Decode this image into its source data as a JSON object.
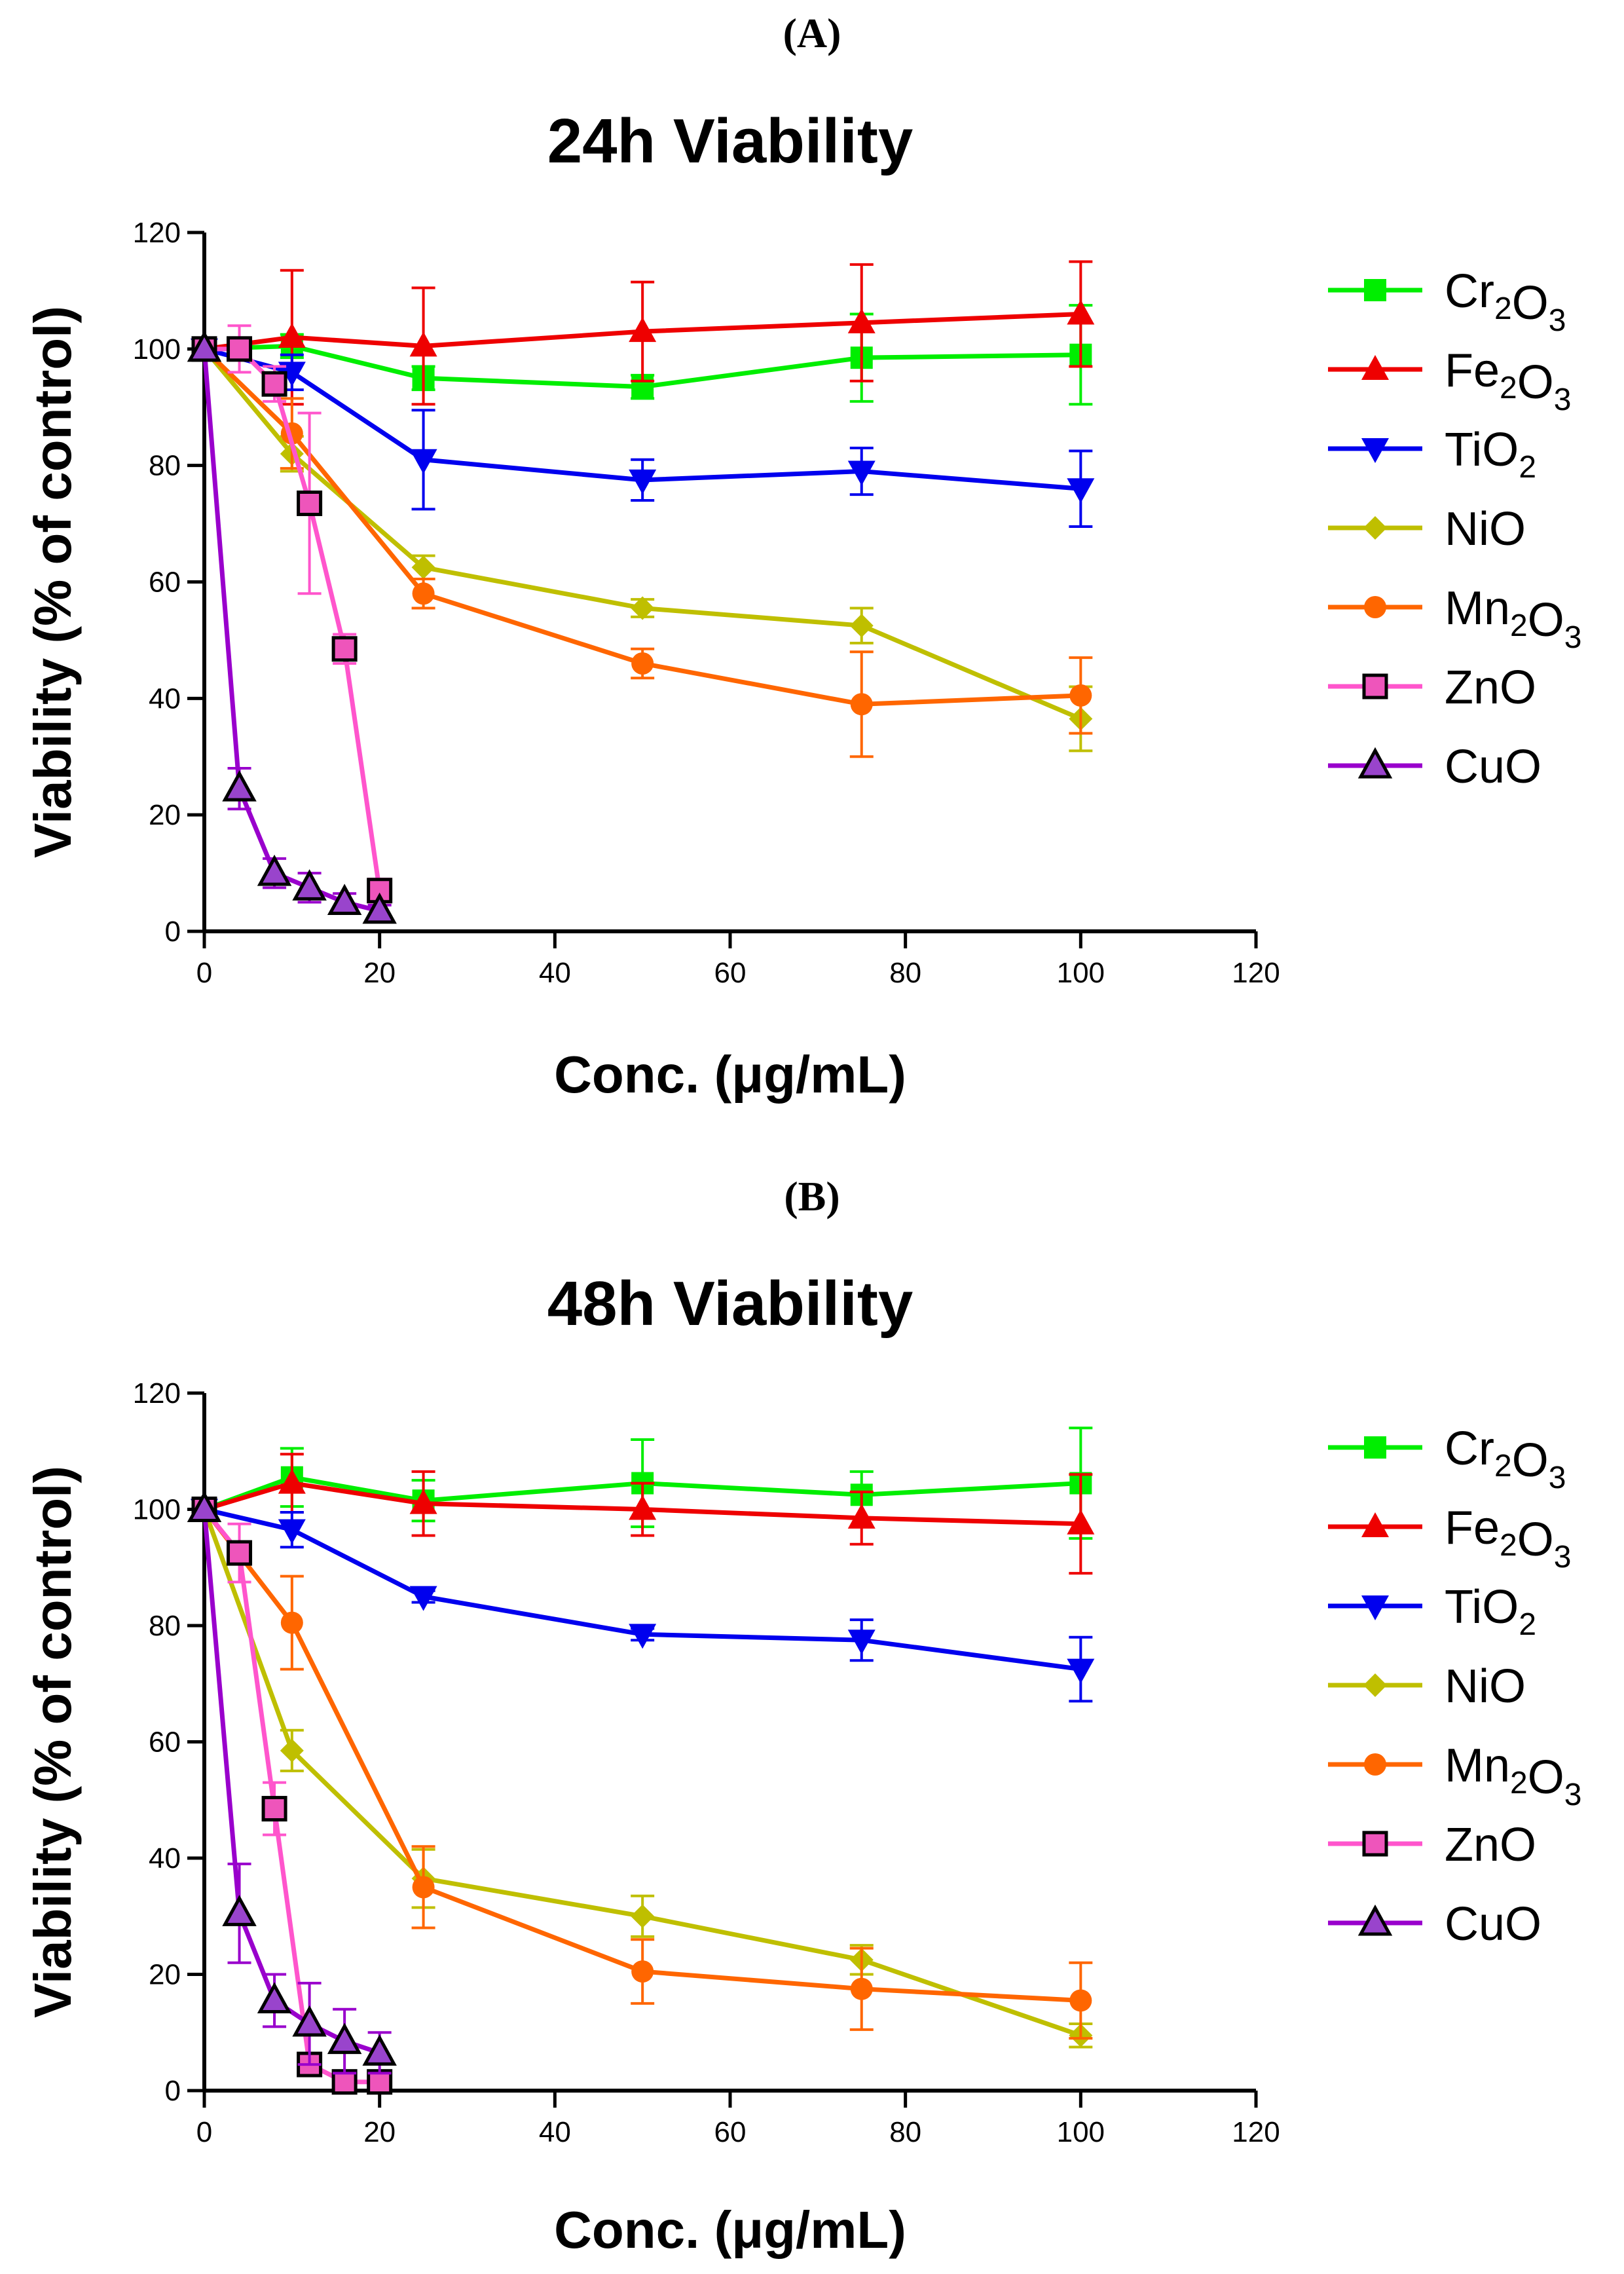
{
  "chart_data": [
    {
      "type": "line",
      "panel_label": "(A)",
      "title": "24h Viability",
      "xlabel": "Conc. (μg/mL)",
      "ylabel": "Viability (% of control)",
      "xlim": [
        0,
        120
      ],
      "ylim": [
        0,
        120
      ],
      "xticks": [
        0,
        20,
        40,
        60,
        80,
        100,
        120
      ],
      "yticks": [
        0,
        20,
        40,
        60,
        80,
        100,
        120
      ],
      "legend_position": "right",
      "series": [
        {
          "name": "Cr2O3",
          "label_base": [
            "Cr",
            "O"
          ],
          "label_sub": [
            "2",
            "3"
          ],
          "color": "#00ee00",
          "marker": "square",
          "marker_fill": "#00ee00",
          "x": [
            0,
            10,
            25,
            50,
            75,
            100
          ],
          "y": [
            100,
            100.5,
            95,
            93.5,
            98.5,
            99
          ],
          "err": [
            0,
            2,
            2,
            2,
            7.5,
            8.5
          ]
        },
        {
          "name": "Fe2O3",
          "label_base": [
            "Fe",
            "O"
          ],
          "label_sub": [
            "2",
            "3"
          ],
          "color": "#ee0000",
          "marker": "triangle-up",
          "marker_fill": "#ee0000",
          "x": [
            0,
            10,
            25,
            50,
            75,
            100
          ],
          "y": [
            100,
            102,
            100.5,
            103,
            104.5,
            106
          ],
          "err": [
            0,
            11.5,
            10,
            8.5,
            10,
            9
          ]
        },
        {
          "name": "TiO2",
          "label_base": [
            "TiO"
          ],
          "label_sub": [
            "2"
          ],
          "color": "#0000ee",
          "marker": "triangle-down",
          "marker_fill": "#0000ee",
          "x": [
            0,
            10,
            25,
            50,
            75,
            100
          ],
          "y": [
            100,
            96,
            81,
            77.5,
            79,
            76
          ],
          "err": [
            0,
            3,
            8.5,
            3.5,
            4,
            6.5
          ]
        },
        {
          "name": "NiO",
          "label_base": [
            "NiO"
          ],
          "label_sub": [],
          "color": "#bfbf00",
          "marker": "diamond",
          "marker_fill": "#bfbf00",
          "x": [
            0,
            10,
            25,
            50,
            75,
            100
          ],
          "y": [
            100,
            82,
            62.5,
            55.5,
            52.5,
            36.5
          ],
          "err": [
            0,
            3,
            2,
            1.5,
            3,
            5.5
          ]
        },
        {
          "name": "Mn2O3",
          "label_base": [
            "Mn",
            "O"
          ],
          "label_sub": [
            "2",
            "3"
          ],
          "color": "#ff6600",
          "marker": "circle",
          "marker_fill": "#ff6600",
          "x": [
            0,
            10,
            25,
            50,
            75,
            100
          ],
          "y": [
            100,
            85.5,
            58,
            46,
            39,
            40.5
          ],
          "err": [
            0,
            6,
            2.5,
            2.5,
            9,
            6.5
          ]
        },
        {
          "name": "ZnO",
          "label_base": [
            "ZnO"
          ],
          "label_sub": [],
          "color": "#ff55cc",
          "marker": "square-outline",
          "marker_fill": "#ee55bb",
          "x": [
            0,
            4,
            8,
            12,
            16,
            20
          ],
          "y": [
            100,
            100,
            94,
            73.5,
            48.5,
            7
          ],
          "err": [
            0,
            4,
            3,
            15.5,
            2.5,
            2
          ]
        },
        {
          "name": "CuO",
          "label_base": [
            "CuO"
          ],
          "label_sub": [],
          "color": "#9900cc",
          "marker": "triangle-outline",
          "marker_fill": "#9944cc",
          "x": [
            0,
            4,
            8,
            12,
            16,
            20
          ],
          "y": [
            100,
            24.5,
            10,
            7.5,
            5,
            3.5
          ],
          "err": [
            0,
            3.5,
            2.5,
            2.5,
            1.5,
            1
          ]
        }
      ]
    },
    {
      "type": "line",
      "panel_label": "(B)",
      "title": "48h Viability",
      "xlabel": "Conc. (μg/mL)",
      "ylabel": "Viability (% of control)",
      "xlim": [
        0,
        120
      ],
      "ylim": [
        0,
        120
      ],
      "xticks": [
        0,
        20,
        40,
        60,
        80,
        100,
        120
      ],
      "yticks": [
        0,
        20,
        40,
        60,
        80,
        100,
        120
      ],
      "legend_position": "right",
      "series": [
        {
          "name": "Cr2O3",
          "label_base": [
            "Cr",
            "O"
          ],
          "label_sub": [
            "2",
            "3"
          ],
          "color": "#00ee00",
          "marker": "square",
          "marker_fill": "#00ee00",
          "x": [
            0,
            10,
            25,
            50,
            75,
            100
          ],
          "y": [
            100,
            105.5,
            101.5,
            104.5,
            102.5,
            104.5
          ],
          "err": [
            0,
            5,
            3.5,
            7.5,
            4,
            9.5
          ]
        },
        {
          "name": "Fe2O3",
          "label_base": [
            "Fe",
            "O"
          ],
          "label_sub": [
            "2",
            "3"
          ],
          "color": "#ee0000",
          "marker": "triangle-up",
          "marker_fill": "#ee0000",
          "x": [
            0,
            10,
            25,
            50,
            75,
            100
          ],
          "y": [
            100,
            104.5,
            101,
            100,
            98.5,
            97.5
          ],
          "err": [
            0,
            5,
            5.5,
            4.5,
            4.5,
            8.5
          ]
        },
        {
          "name": "TiO2",
          "label_base": [
            "TiO"
          ],
          "label_sub": [
            "2"
          ],
          "color": "#0000ee",
          "marker": "triangle-down",
          "marker_fill": "#0000ee",
          "x": [
            0,
            10,
            25,
            50,
            75,
            100
          ],
          "y": [
            100,
            96.5,
            85,
            78.5,
            77.5,
            72.5
          ],
          "err": [
            0,
            3,
            1,
            1,
            3.5,
            5.5
          ]
        },
        {
          "name": "NiO",
          "label_base": [
            "NiO"
          ],
          "label_sub": [],
          "color": "#bfbf00",
          "marker": "diamond",
          "marker_fill": "#bfbf00",
          "x": [
            0,
            10,
            25,
            50,
            75,
            100
          ],
          "y": [
            100,
            58.5,
            36.5,
            30,
            22.5,
            9.5
          ],
          "err": [
            0,
            3.5,
            5,
            3.5,
            2.5,
            2
          ]
        },
        {
          "name": "Mn2O3",
          "label_base": [
            "Mn",
            "O"
          ],
          "label_sub": [
            "2",
            "3"
          ],
          "color": "#ff6600",
          "marker": "circle",
          "marker_fill": "#ff6600",
          "x": [
            0,
            10,
            25,
            50,
            75,
            100
          ],
          "y": [
            100,
            80.5,
            35,
            20.5,
            17.5,
            15.5
          ],
          "err": [
            0,
            8,
            7,
            5.5,
            7,
            6.5
          ]
        },
        {
          "name": "ZnO",
          "label_base": [
            "ZnO"
          ],
          "label_sub": [],
          "color": "#ff55cc",
          "marker": "square-outline",
          "marker_fill": "#ee55bb",
          "x": [
            0,
            4,
            8,
            12,
            16,
            20
          ],
          "y": [
            100,
            92.5,
            48.5,
            4.5,
            1.5,
            1.5
          ],
          "err": [
            0,
            5,
            4.5,
            1.5,
            1,
            1
          ]
        },
        {
          "name": "CuO",
          "label_base": [
            "CuO"
          ],
          "label_sub": [],
          "color": "#9900cc",
          "marker": "triangle-outline",
          "marker_fill": "#9944cc",
          "x": [
            0,
            4,
            8,
            12,
            16,
            20
          ],
          "y": [
            100,
            30.5,
            15.5,
            11.5,
            8.5,
            6.5
          ],
          "err": [
            0,
            8.5,
            4.5,
            7,
            5.5,
            3.5
          ]
        }
      ]
    }
  ]
}
